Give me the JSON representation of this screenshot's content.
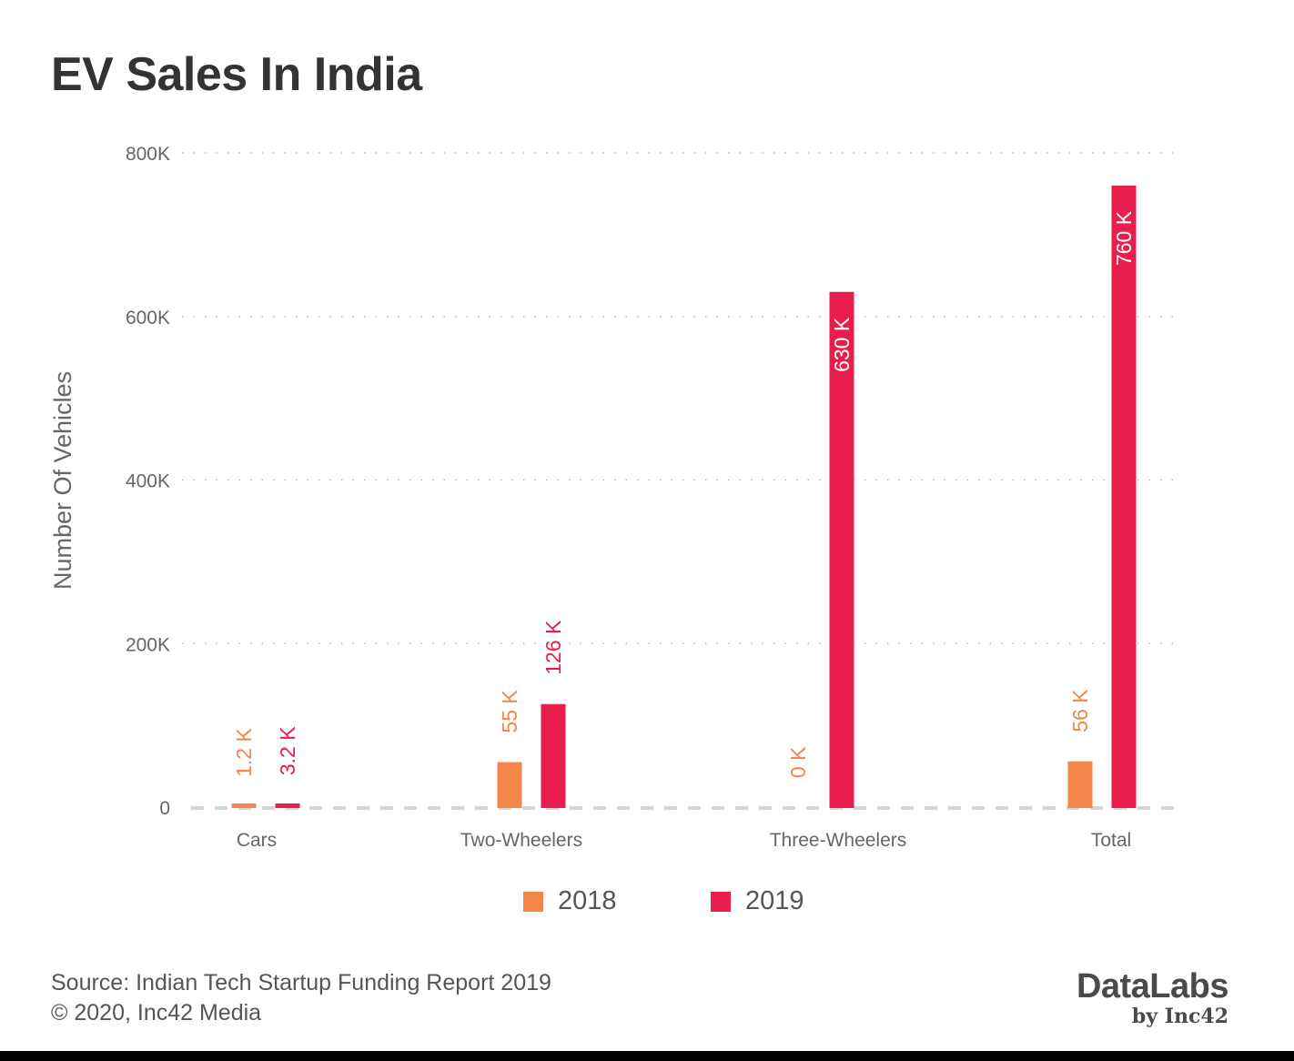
{
  "title": "EV Sales In India",
  "chart_data": {
    "type": "bar",
    "title": "EV Sales In India",
    "xlabel": "",
    "ylabel": "Number Of Vehicles",
    "ylim": [
      0,
      800
    ],
    "yticks": [
      0,
      200,
      400,
      600,
      800
    ],
    "ytick_labels": [
      "0",
      "200K",
      "400K",
      "600K",
      "800K"
    ],
    "grid": true,
    "categories": [
      "Cars",
      "Two-Wheelers",
      "Three-Wheelers",
      "Total"
    ],
    "series": [
      {
        "name": "2018",
        "color": "#F5864A",
        "values": [
          1.2,
          55,
          0,
          56
        ],
        "labels": [
          "1.2 K",
          "55 K",
          "0 K",
          "56 K"
        ]
      },
      {
        "name": "2019",
        "color": "#E91E4D",
        "values": [
          3.2,
          126,
          630,
          760
        ],
        "labels": [
          "3.2 K",
          "126 K",
          "630 K",
          "760 K"
        ]
      }
    ],
    "legend_position": "bottom-center"
  },
  "footer": {
    "source": "Source: Indian Tech Startup Funding Report 2019",
    "copyright": "© 2020, Inc42 Media"
  },
  "logo": {
    "line1": "DataLabs",
    "line2": "by Inc42"
  }
}
